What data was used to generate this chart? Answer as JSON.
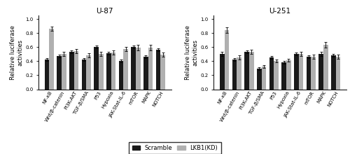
{
  "title_left": "U-87",
  "title_right": "U-251",
  "ylabel": "Relative luciferase\nactivities",
  "categories": [
    "NF-κB",
    "Wnt/β-catenin",
    "PI3K-AKT",
    "TGF-β/SMA",
    "P53",
    "Hypoxia",
    "JAK-Stat-IL-6",
    "mTOR",
    "MAPK",
    "NOTCH"
  ],
  "scramble_color": "#1a1a1a",
  "lkb1kd_color": "#b0b0b0",
  "ylim": [
    0.0,
    1.05
  ],
  "yticks": [
    0.0,
    0.2,
    0.4,
    0.6,
    0.8,
    1.0
  ],
  "left_scramble": [
    0.42,
    0.47,
    0.53,
    0.42,
    0.6,
    0.51,
    0.4,
    0.6,
    0.46,
    0.56
  ],
  "left_lkb1kd": [
    0.86,
    0.5,
    0.54,
    0.48,
    0.5,
    0.52,
    0.57,
    0.59,
    0.59,
    0.49
  ],
  "left_scramble_err": [
    0.02,
    0.02,
    0.02,
    0.02,
    0.02,
    0.02,
    0.02,
    0.02,
    0.02,
    0.02
  ],
  "left_lkb1kd_err": [
    0.03,
    0.03,
    0.03,
    0.03,
    0.03,
    0.03,
    0.03,
    0.04,
    0.04,
    0.03
  ],
  "right_scramble": [
    0.5,
    0.42,
    0.53,
    0.29,
    0.45,
    0.38,
    0.5,
    0.46,
    0.5,
    0.48
  ],
  "right_lkb1kd": [
    0.84,
    0.45,
    0.53,
    0.32,
    0.4,
    0.41,
    0.5,
    0.46,
    0.63,
    0.46
  ],
  "right_scramble_err": [
    0.03,
    0.02,
    0.02,
    0.02,
    0.02,
    0.02,
    0.02,
    0.02,
    0.03,
    0.02
  ],
  "right_lkb1kd_err": [
    0.04,
    0.03,
    0.03,
    0.02,
    0.02,
    0.02,
    0.03,
    0.03,
    0.04,
    0.03
  ],
  "legend_labels": [
    "Scramble",
    "LKB1(KD)"
  ],
  "bar_width": 0.38,
  "tick_fontsize": 5.0,
  "label_fontsize": 6.0,
  "title_fontsize": 7.5
}
